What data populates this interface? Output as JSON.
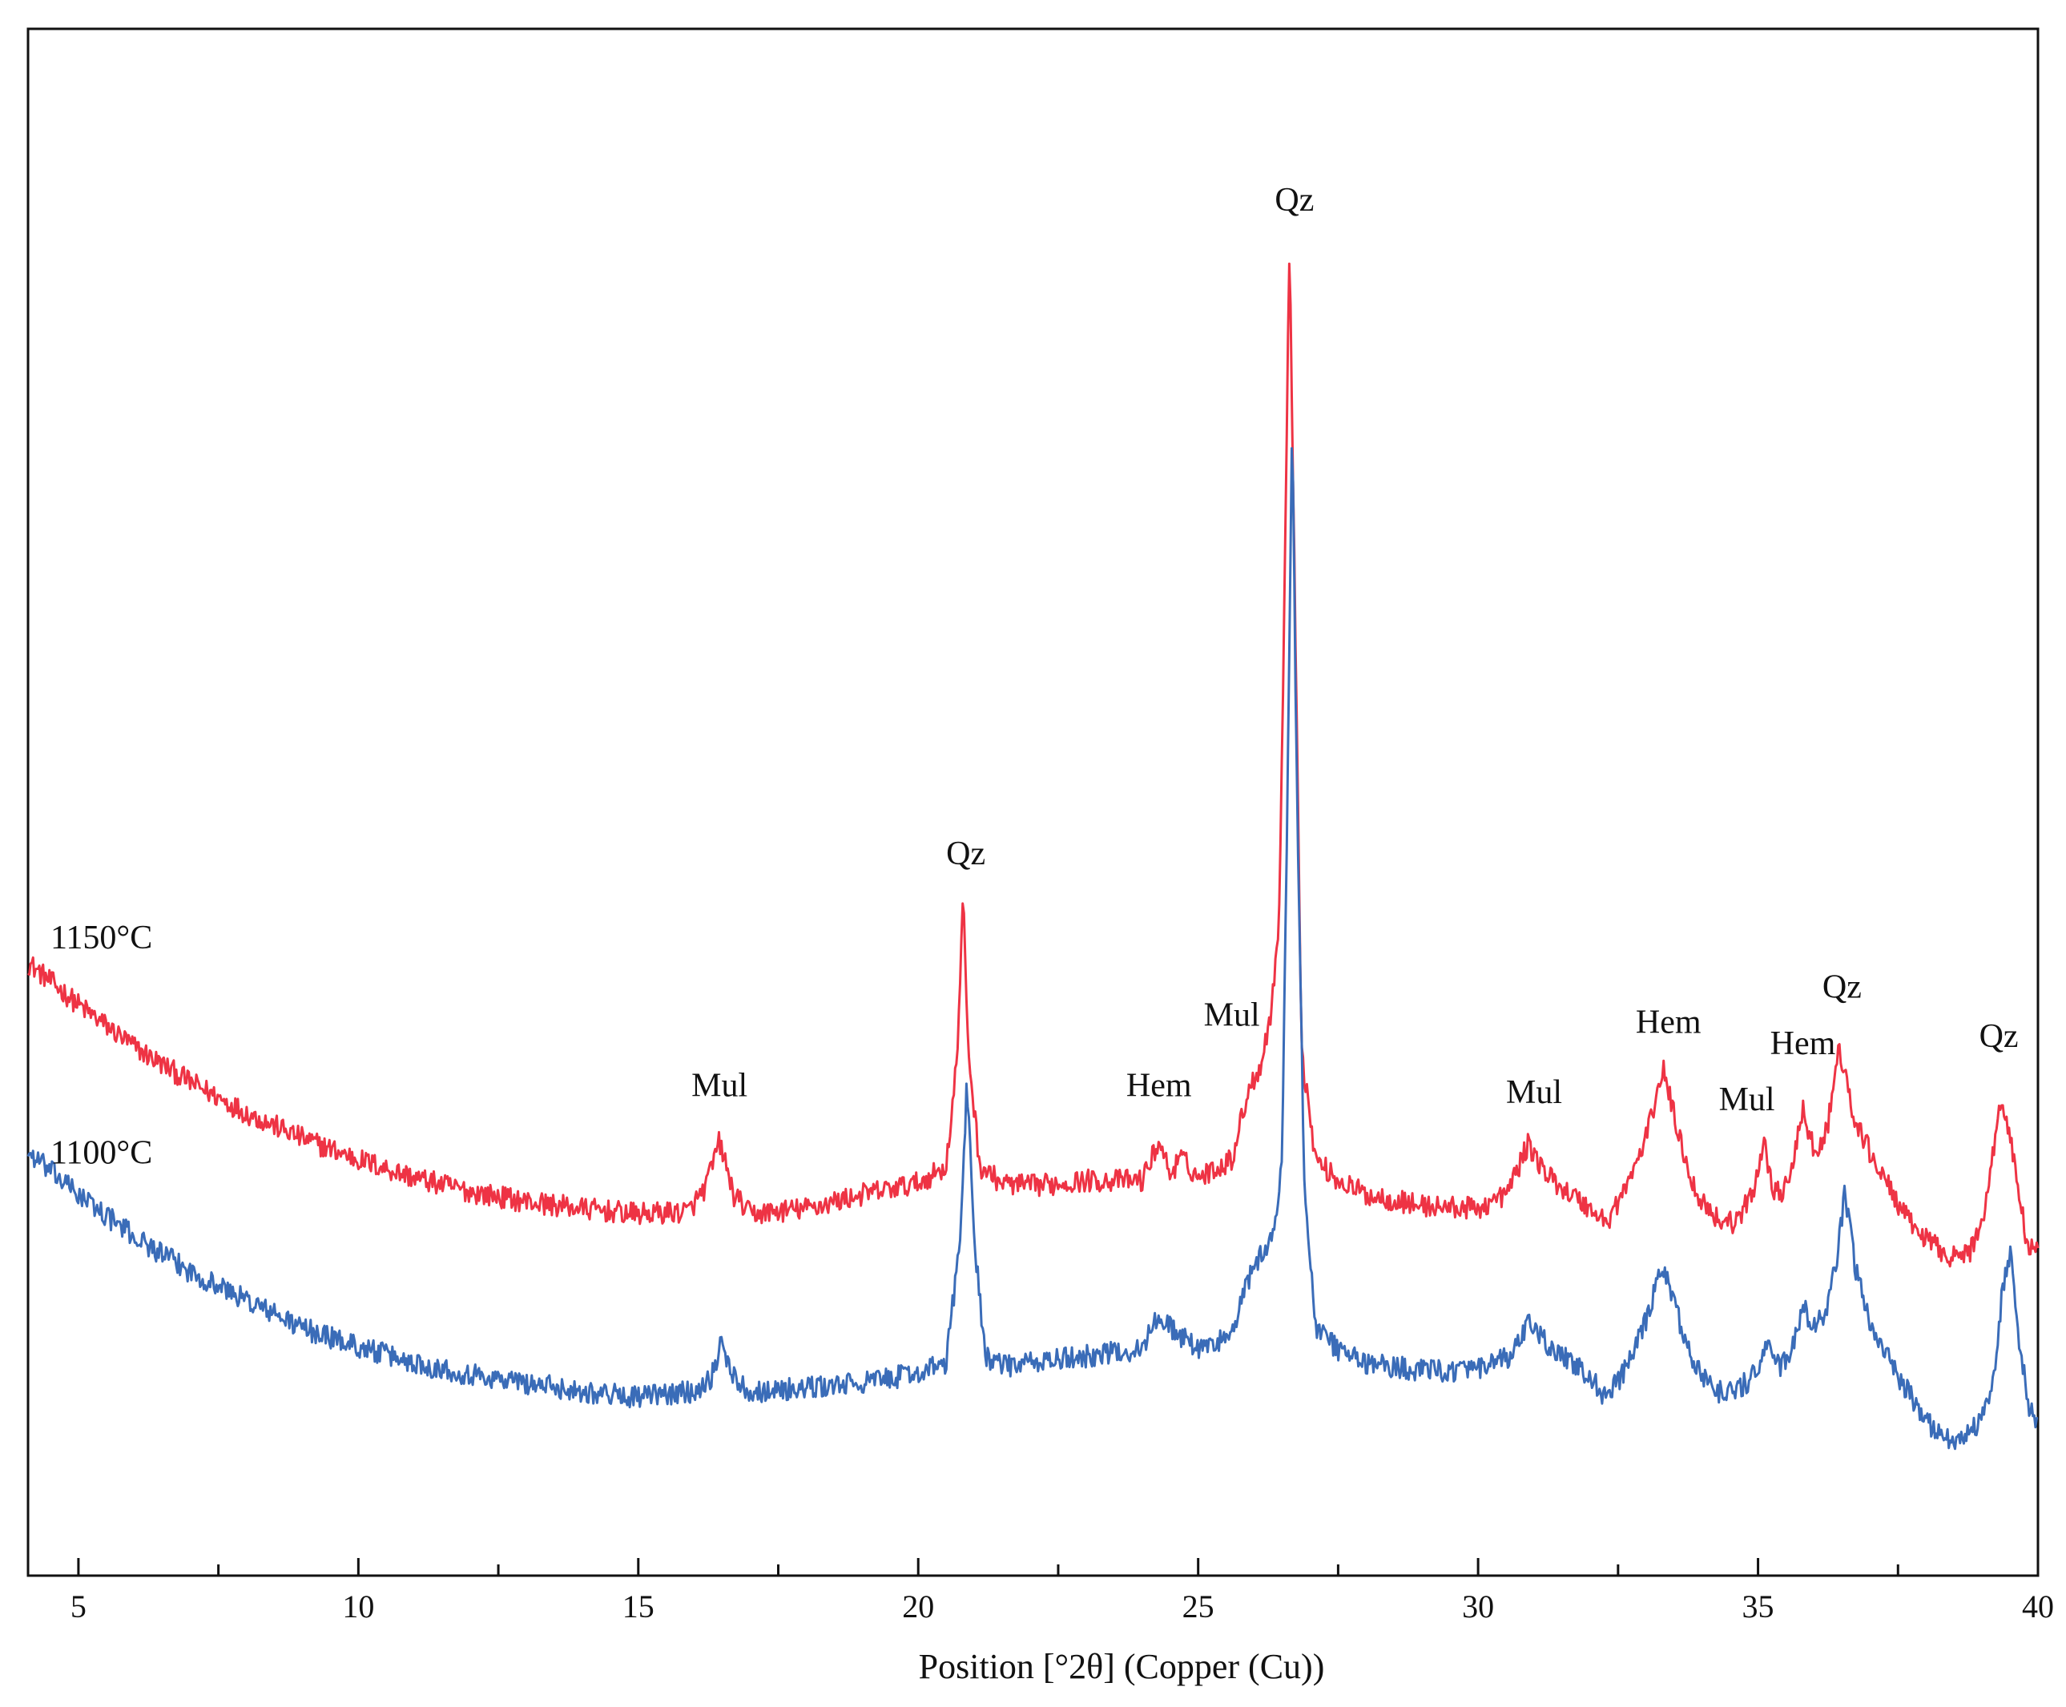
{
  "chart_data": {
    "type": "line",
    "title": "",
    "xlabel": "Position [°2θ] (Copper (Cu))",
    "ylabel": "",
    "xlim": [
      4.1,
      40
    ],
    "ylim": [
      0,
      100
    ],
    "y_ticks_shown": false,
    "grid": false,
    "legend": "none",
    "x_ticks": [
      5,
      10,
      15,
      20,
      25,
      30,
      35,
      40
    ],
    "x_tick_labels": [
      "5",
      "10",
      "15",
      "20",
      "25",
      "30",
      "35",
      "40"
    ],
    "series": [
      {
        "name": "1150°C",
        "color": "#ee3344",
        "points": [
          [
            4.1,
            41.5
          ],
          [
            5,
            38.5
          ],
          [
            6,
            35.5
          ],
          [
            7,
            33.0
          ],
          [
            8,
            30.8
          ],
          [
            9,
            29.0
          ],
          [
            10,
            27.5
          ],
          [
            11,
            26.2
          ],
          [
            12,
            25.2
          ],
          [
            13,
            24.5
          ],
          [
            14,
            24.0
          ],
          [
            15,
            23.6
          ],
          [
            15.9,
            23.8
          ],
          [
            16.2,
            25.5
          ],
          [
            16.45,
            28.8
          ],
          [
            16.7,
            25.0
          ],
          [
            17.0,
            23.6
          ],
          [
            18,
            24.0
          ],
          [
            19,
            25.0
          ],
          [
            20,
            25.8
          ],
          [
            20.5,
            27.0
          ],
          [
            20.7,
            35.0
          ],
          [
            20.8,
            46.0
          ],
          [
            20.9,
            35.0
          ],
          [
            21.1,
            27.0
          ],
          [
            21.5,
            25.8
          ],
          [
            22,
            25.6
          ],
          [
            23,
            26.0
          ],
          [
            24,
            26.0
          ],
          [
            24.3,
            28.8
          ],
          [
            24.5,
            26.5
          ],
          [
            24.7,
            27.6
          ],
          [
            25.0,
            26.2
          ],
          [
            25.6,
            27.5
          ],
          [
            25.9,
            32.5
          ],
          [
            26.1,
            34.0
          ],
          [
            26.3,
            37.8
          ],
          [
            26.45,
            45.0
          ],
          [
            26.55,
            70.0
          ],
          [
            26.63,
            92.5
          ],
          [
            26.72,
            70.0
          ],
          [
            26.85,
            35.0
          ],
          [
            27.1,
            27.5
          ],
          [
            27.5,
            26.0
          ],
          [
            28,
            25.0
          ],
          [
            29,
            24.2
          ],
          [
            30,
            24.0
          ],
          [
            30.5,
            25.0
          ],
          [
            30.9,
            28.6
          ],
          [
            31.2,
            26.5
          ],
          [
            31.6,
            25.2
          ],
          [
            32.0,
            24.0
          ],
          [
            32.3,
            23.0
          ],
          [
            32.7,
            26.0
          ],
          [
            33.0,
            29.0
          ],
          [
            33.3,
            34.0
          ],
          [
            33.6,
            29.0
          ],
          [
            33.9,
            25.0
          ],
          [
            34.3,
            23.2
          ],
          [
            34.6,
            23.0
          ],
          [
            34.9,
            25.0
          ],
          [
            35.1,
            28.8
          ],
          [
            35.3,
            25.0
          ],
          [
            35.55,
            25.6
          ],
          [
            35.8,
            31.0
          ],
          [
            36.05,
            27.5
          ],
          [
            36.25,
            30.0
          ],
          [
            36.45,
            35.5
          ],
          [
            36.7,
            30.5
          ],
          [
            37.0,
            28.0
          ],
          [
            37.3,
            25.8
          ],
          [
            37.7,
            23.0
          ],
          [
            38.1,
            21.5
          ],
          [
            38.5,
            20.5
          ],
          [
            38.8,
            21.0
          ],
          [
            39.0,
            23.0
          ],
          [
            39.2,
            28.0
          ],
          [
            39.35,
            32.0
          ],
          [
            39.55,
            28.0
          ],
          [
            39.8,
            21.5
          ],
          [
            40,
            20.8
          ]
        ]
      },
      {
        "name": "1100°C",
        "color": "#3a6cb8",
        "points": [
          [
            4.1,
            28.0
          ],
          [
            5,
            25.0
          ],
          [
            6,
            22.0
          ],
          [
            7,
            19.5
          ],
          [
            8,
            17.5
          ],
          [
            9,
            15.5
          ],
          [
            10,
            14.2
          ],
          [
            11,
            13.0
          ],
          [
            12,
            12.2
          ],
          [
            13,
            11.6
          ],
          [
            14,
            11.0
          ],
          [
            15,
            10.6
          ],
          [
            16,
            11.0
          ],
          [
            16.3,
            12.0
          ],
          [
            16.5,
            14.5
          ],
          [
            16.7,
            12.0
          ],
          [
            17.0,
            11.0
          ],
          [
            18,
            11.2
          ],
          [
            19,
            11.6
          ],
          [
            20,
            12.3
          ],
          [
            20.5,
            13.0
          ],
          [
            20.75,
            22.0
          ],
          [
            20.87,
            33.0
          ],
          [
            21.0,
            22.0
          ],
          [
            21.2,
            13.5
          ],
          [
            21.5,
            12.8
          ],
          [
            22,
            13.0
          ],
          [
            23,
            13.5
          ],
          [
            24,
            14.0
          ],
          [
            24.3,
            16.5
          ],
          [
            24.6,
            15.2
          ],
          [
            25.0,
            14.0
          ],
          [
            25.6,
            15.0
          ],
          [
            25.9,
            19.0
          ],
          [
            26.1,
            20.5
          ],
          [
            26.35,
            22.0
          ],
          [
            26.5,
            28.0
          ],
          [
            26.6,
            55.0
          ],
          [
            26.68,
            80.0
          ],
          [
            26.76,
            55.0
          ],
          [
            26.9,
            25.0
          ],
          [
            27.1,
            15.5
          ],
          [
            27.5,
            14.0
          ],
          [
            28,
            13.0
          ],
          [
            29,
            12.5
          ],
          [
            30,
            12.5
          ],
          [
            30.6,
            13.5
          ],
          [
            30.9,
            15.8
          ],
          [
            31.2,
            14.5
          ],
          [
            31.6,
            13.2
          ],
          [
            32.0,
            12.0
          ],
          [
            32.3,
            10.5
          ],
          [
            32.7,
            13.0
          ],
          [
            33.0,
            16.0
          ],
          [
            33.3,
            20.0
          ],
          [
            33.6,
            16.0
          ],
          [
            33.9,
            12.5
          ],
          [
            34.3,
            11.0
          ],
          [
            34.6,
            11.0
          ],
          [
            34.9,
            12.0
          ],
          [
            35.2,
            14.5
          ],
          [
            35.4,
            12.5
          ],
          [
            35.6,
            14.0
          ],
          [
            35.8,
            17.0
          ],
          [
            36.0,
            15.5
          ],
          [
            36.2,
            16.5
          ],
          [
            36.4,
            20.0
          ],
          [
            36.55,
            25.0
          ],
          [
            36.75,
            19.5
          ],
          [
            37.0,
            16.0
          ],
          [
            37.3,
            13.5
          ],
          [
            37.7,
            10.8
          ],
          [
            38.1,
            8.5
          ],
          [
            38.5,
            7.5
          ],
          [
            38.9,
            8.5
          ],
          [
            39.2,
            11.5
          ],
          [
            39.35,
            17.5
          ],
          [
            39.5,
            21.0
          ],
          [
            39.65,
            15.0
          ],
          [
            39.85,
            9.5
          ],
          [
            40,
            9.0
          ]
        ]
      }
    ],
    "series_labels": [
      {
        "text": "1150°C",
        "x": 4.5,
        "y": 42.5
      },
      {
        "text": "1100°C",
        "x": 4.5,
        "y": 27.2
      }
    ],
    "annotations": [
      {
        "text": "Qz",
        "x": 26.72,
        "y": 95.0
      },
      {
        "text": "Qz",
        "x": 20.85,
        "y": 48.5
      },
      {
        "text": "Mul",
        "x": 16.45,
        "y": 32.0
      },
      {
        "text": "Hem",
        "x": 24.3,
        "y": 32.0
      },
      {
        "text": "Mul",
        "x": 25.6,
        "y": 37.0
      },
      {
        "text": "Mul",
        "x": 31.0,
        "y": 31.5
      },
      {
        "text": "Hem",
        "x": 33.4,
        "y": 36.5
      },
      {
        "text": "Mul",
        "x": 34.8,
        "y": 31.0
      },
      {
        "text": "Hem",
        "x": 35.8,
        "y": 35.0
      },
      {
        "text": "Qz",
        "x": 36.5,
        "y": 39.0
      },
      {
        "text": "Qz",
        "x": 39.3,
        "y": 35.5
      }
    ]
  }
}
